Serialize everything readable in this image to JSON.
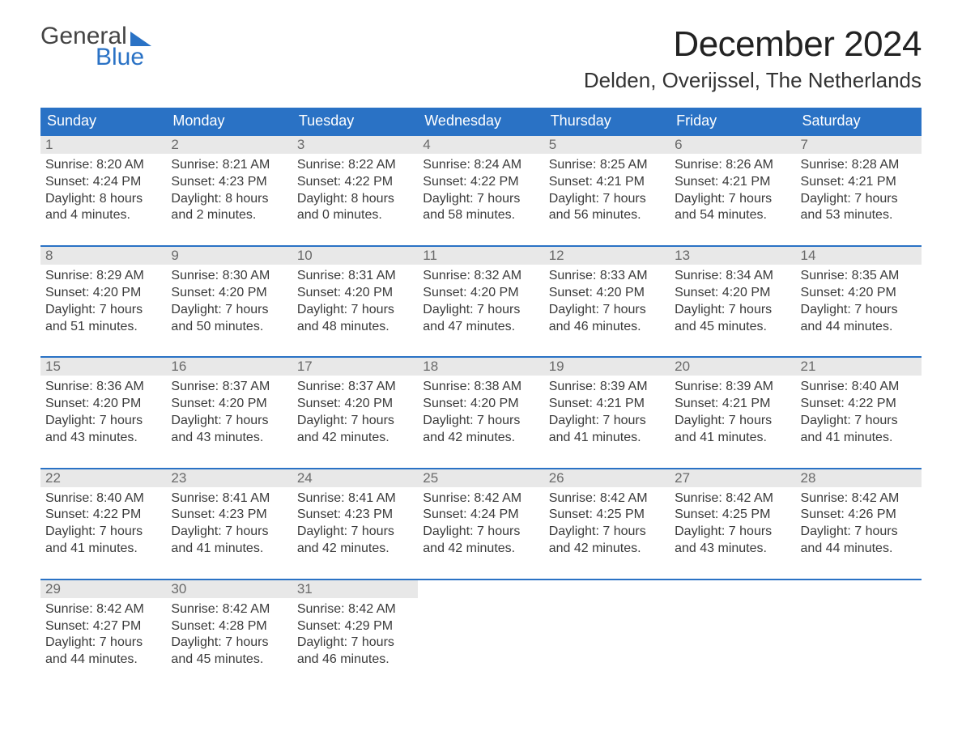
{
  "brand": {
    "word1": "General",
    "word2": "Blue"
  },
  "title": {
    "month": "December 2024",
    "location": "Delden, Overijssel, The Netherlands"
  },
  "colors": {
    "header_bg": "#2a72c5",
    "header_text": "#ffffff",
    "daynum_bg": "#e8e8e8",
    "daynum_text": "#6a6a6a",
    "body_text": "#3a3a3a",
    "week_border": "#2a72c5",
    "page_bg": "#ffffff"
  },
  "typography": {
    "month_title_fontsize": 44,
    "location_fontsize": 26,
    "dow_fontsize": 18,
    "daynum_fontsize": 17,
    "body_fontsize": 16
  },
  "layout": {
    "columns": 7,
    "rows": 5
  },
  "dow": [
    "Sunday",
    "Monday",
    "Tuesday",
    "Wednesday",
    "Thursday",
    "Friday",
    "Saturday"
  ],
  "weeks": [
    [
      {
        "n": "1",
        "sunrise": "Sunrise: 8:20 AM",
        "sunset": "Sunset: 4:24 PM",
        "d1": "Daylight: 8 hours",
        "d2": "and 4 minutes."
      },
      {
        "n": "2",
        "sunrise": "Sunrise: 8:21 AM",
        "sunset": "Sunset: 4:23 PM",
        "d1": "Daylight: 8 hours",
        "d2": "and 2 minutes."
      },
      {
        "n": "3",
        "sunrise": "Sunrise: 8:22 AM",
        "sunset": "Sunset: 4:22 PM",
        "d1": "Daylight: 8 hours",
        "d2": "and 0 minutes."
      },
      {
        "n": "4",
        "sunrise": "Sunrise: 8:24 AM",
        "sunset": "Sunset: 4:22 PM",
        "d1": "Daylight: 7 hours",
        "d2": "and 58 minutes."
      },
      {
        "n": "5",
        "sunrise": "Sunrise: 8:25 AM",
        "sunset": "Sunset: 4:21 PM",
        "d1": "Daylight: 7 hours",
        "d2": "and 56 minutes."
      },
      {
        "n": "6",
        "sunrise": "Sunrise: 8:26 AM",
        "sunset": "Sunset: 4:21 PM",
        "d1": "Daylight: 7 hours",
        "d2": "and 54 minutes."
      },
      {
        "n": "7",
        "sunrise": "Sunrise: 8:28 AM",
        "sunset": "Sunset: 4:21 PM",
        "d1": "Daylight: 7 hours",
        "d2": "and 53 minutes."
      }
    ],
    [
      {
        "n": "8",
        "sunrise": "Sunrise: 8:29 AM",
        "sunset": "Sunset: 4:20 PM",
        "d1": "Daylight: 7 hours",
        "d2": "and 51 minutes."
      },
      {
        "n": "9",
        "sunrise": "Sunrise: 8:30 AM",
        "sunset": "Sunset: 4:20 PM",
        "d1": "Daylight: 7 hours",
        "d2": "and 50 minutes."
      },
      {
        "n": "10",
        "sunrise": "Sunrise: 8:31 AM",
        "sunset": "Sunset: 4:20 PM",
        "d1": "Daylight: 7 hours",
        "d2": "and 48 minutes."
      },
      {
        "n": "11",
        "sunrise": "Sunrise: 8:32 AM",
        "sunset": "Sunset: 4:20 PM",
        "d1": "Daylight: 7 hours",
        "d2": "and 47 minutes."
      },
      {
        "n": "12",
        "sunrise": "Sunrise: 8:33 AM",
        "sunset": "Sunset: 4:20 PM",
        "d1": "Daylight: 7 hours",
        "d2": "and 46 minutes."
      },
      {
        "n": "13",
        "sunrise": "Sunrise: 8:34 AM",
        "sunset": "Sunset: 4:20 PM",
        "d1": "Daylight: 7 hours",
        "d2": "and 45 minutes."
      },
      {
        "n": "14",
        "sunrise": "Sunrise: 8:35 AM",
        "sunset": "Sunset: 4:20 PM",
        "d1": "Daylight: 7 hours",
        "d2": "and 44 minutes."
      }
    ],
    [
      {
        "n": "15",
        "sunrise": "Sunrise: 8:36 AM",
        "sunset": "Sunset: 4:20 PM",
        "d1": "Daylight: 7 hours",
        "d2": "and 43 minutes."
      },
      {
        "n": "16",
        "sunrise": "Sunrise: 8:37 AM",
        "sunset": "Sunset: 4:20 PM",
        "d1": "Daylight: 7 hours",
        "d2": "and 43 minutes."
      },
      {
        "n": "17",
        "sunrise": "Sunrise: 8:37 AM",
        "sunset": "Sunset: 4:20 PM",
        "d1": "Daylight: 7 hours",
        "d2": "and 42 minutes."
      },
      {
        "n": "18",
        "sunrise": "Sunrise: 8:38 AM",
        "sunset": "Sunset: 4:20 PM",
        "d1": "Daylight: 7 hours",
        "d2": "and 42 minutes."
      },
      {
        "n": "19",
        "sunrise": "Sunrise: 8:39 AM",
        "sunset": "Sunset: 4:21 PM",
        "d1": "Daylight: 7 hours",
        "d2": "and 41 minutes."
      },
      {
        "n": "20",
        "sunrise": "Sunrise: 8:39 AM",
        "sunset": "Sunset: 4:21 PM",
        "d1": "Daylight: 7 hours",
        "d2": "and 41 minutes."
      },
      {
        "n": "21",
        "sunrise": "Sunrise: 8:40 AM",
        "sunset": "Sunset: 4:22 PM",
        "d1": "Daylight: 7 hours",
        "d2": "and 41 minutes."
      }
    ],
    [
      {
        "n": "22",
        "sunrise": "Sunrise: 8:40 AM",
        "sunset": "Sunset: 4:22 PM",
        "d1": "Daylight: 7 hours",
        "d2": "and 41 minutes."
      },
      {
        "n": "23",
        "sunrise": "Sunrise: 8:41 AM",
        "sunset": "Sunset: 4:23 PM",
        "d1": "Daylight: 7 hours",
        "d2": "and 41 minutes."
      },
      {
        "n": "24",
        "sunrise": "Sunrise: 8:41 AM",
        "sunset": "Sunset: 4:23 PM",
        "d1": "Daylight: 7 hours",
        "d2": "and 42 minutes."
      },
      {
        "n": "25",
        "sunrise": "Sunrise: 8:42 AM",
        "sunset": "Sunset: 4:24 PM",
        "d1": "Daylight: 7 hours",
        "d2": "and 42 minutes."
      },
      {
        "n": "26",
        "sunrise": "Sunrise: 8:42 AM",
        "sunset": "Sunset: 4:25 PM",
        "d1": "Daylight: 7 hours",
        "d2": "and 42 minutes."
      },
      {
        "n": "27",
        "sunrise": "Sunrise: 8:42 AM",
        "sunset": "Sunset: 4:25 PM",
        "d1": "Daylight: 7 hours",
        "d2": "and 43 minutes."
      },
      {
        "n": "28",
        "sunrise": "Sunrise: 8:42 AM",
        "sunset": "Sunset: 4:26 PM",
        "d1": "Daylight: 7 hours",
        "d2": "and 44 minutes."
      }
    ],
    [
      {
        "n": "29",
        "sunrise": "Sunrise: 8:42 AM",
        "sunset": "Sunset: 4:27 PM",
        "d1": "Daylight: 7 hours",
        "d2": "and 44 minutes."
      },
      {
        "n": "30",
        "sunrise": "Sunrise: 8:42 AM",
        "sunset": "Sunset: 4:28 PM",
        "d1": "Daylight: 7 hours",
        "d2": "and 45 minutes."
      },
      {
        "n": "31",
        "sunrise": "Sunrise: 8:42 AM",
        "sunset": "Sunset: 4:29 PM",
        "d1": "Daylight: 7 hours",
        "d2": "and 46 minutes."
      },
      {
        "empty": true
      },
      {
        "empty": true
      },
      {
        "empty": true
      },
      {
        "empty": true
      }
    ]
  ]
}
